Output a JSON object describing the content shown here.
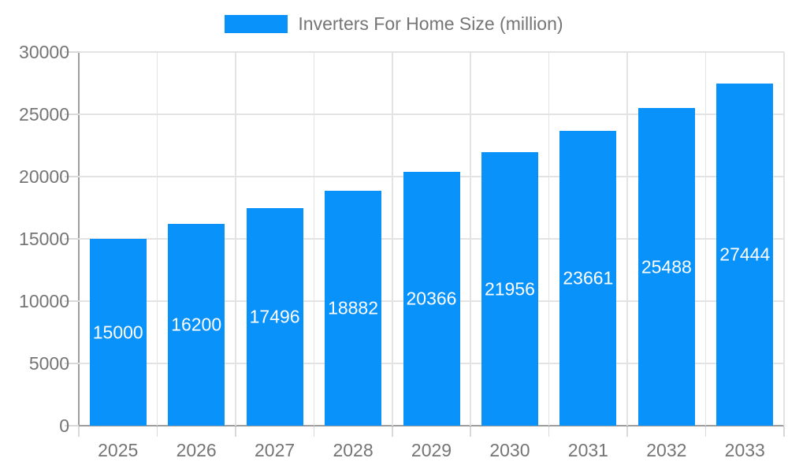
{
  "legend": {
    "label": "Inverters For Home Size (million)"
  },
  "colors": {
    "bar": "#0892fa",
    "axis": "#9e9e9e",
    "grid": "#e3e3e3",
    "tick": "#d9d9d9",
    "axis_text": "#757575",
    "bar_label_text": "#ffffff",
    "background": "#ffffff"
  },
  "chart_data": {
    "type": "bar",
    "title": "Inverters For Home Size (million)",
    "legend_entries": [
      "Inverters For Home Size (million)"
    ],
    "legend_position": "top-center",
    "categories": [
      "2025",
      "2026",
      "2027",
      "2028",
      "2029",
      "2030",
      "2031",
      "2032",
      "2033"
    ],
    "values": [
      15000,
      16200,
      17496,
      18882,
      20366,
      21956,
      23661,
      25488,
      27444
    ],
    "xlabel": "",
    "ylabel": "",
    "ylim": [
      0,
      30000
    ],
    "yticks": [
      0,
      5000,
      10000,
      15000,
      20000,
      25000,
      30000
    ],
    "grid": true,
    "value_labels": "inside-center-white"
  }
}
